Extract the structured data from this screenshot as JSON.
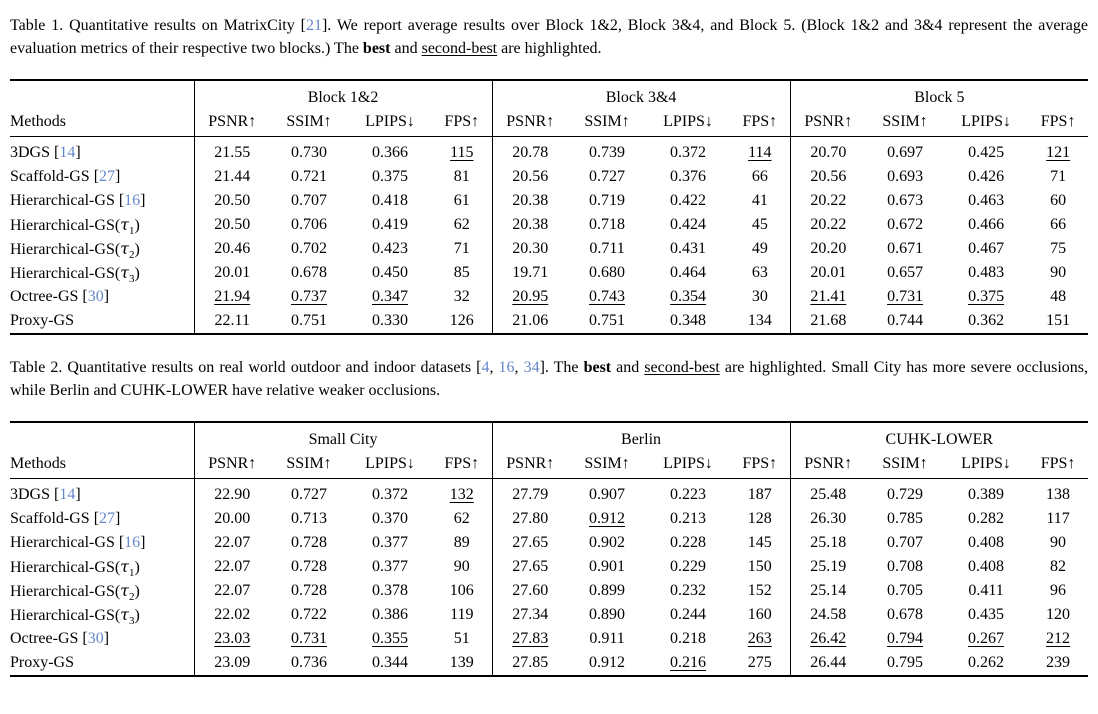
{
  "page": {
    "background": "#ffffff",
    "text_color": "#000000",
    "citation_color": "#6487c9",
    "format_codes": {
      "n": "normal",
      "b": "best-bold",
      "u": "second-best-underline"
    }
  },
  "tables": [
    {
      "id": "table-1",
      "caption": [
        {
          "text": "Table 1.  Quantitative results on MatrixCity [",
          "style": "normal"
        },
        {
          "text": "21",
          "style": "ref"
        },
        {
          "text": "].  We report average results over Block 1&2, Block 3&4, and Block 5.  (Block 1&2 and 3&4 represent the average evaluation metrics of their respective two blocks.) The ",
          "style": "normal"
        },
        {
          "text": "best",
          "style": "bold"
        },
        {
          "text": " and ",
          "style": "normal"
        },
        {
          "text": "second-best",
          "style": "underline"
        },
        {
          "text": " are highlighted.",
          "style": "normal"
        }
      ],
      "methods_label": "Methods",
      "groups": [
        "Block 1&2",
        "Block 3&4",
        "Block 5"
      ],
      "metrics": [
        "PSNR↑",
        "SSIM↑",
        "LPIPS↓",
        "FPS↑"
      ],
      "rows": [
        {
          "method": {
            "name": "3DGS",
            "ref": "14"
          },
          "cells": [
            [
              "21.55",
              "n"
            ],
            [
              "0.730",
              "n"
            ],
            [
              "0.366",
              "n"
            ],
            [
              "115",
              "u"
            ],
            [
              "20.78",
              "n"
            ],
            [
              "0.739",
              "n"
            ],
            [
              "0.372",
              "n"
            ],
            [
              "114",
              "u"
            ],
            [
              "20.70",
              "n"
            ],
            [
              "0.697",
              "n"
            ],
            [
              "0.425",
              "n"
            ],
            [
              "121",
              "u"
            ]
          ]
        },
        {
          "method": {
            "name": "Scaffold-GS",
            "ref": "27"
          },
          "cells": [
            [
              "21.44",
              "n"
            ],
            [
              "0.721",
              "n"
            ],
            [
              "0.375",
              "n"
            ],
            [
              "81",
              "n"
            ],
            [
              "20.56",
              "n"
            ],
            [
              "0.727",
              "n"
            ],
            [
              "0.376",
              "n"
            ],
            [
              "66",
              "n"
            ],
            [
              "20.56",
              "n"
            ],
            [
              "0.693",
              "n"
            ],
            [
              "0.426",
              "n"
            ],
            [
              "71",
              "n"
            ]
          ]
        },
        {
          "method": {
            "name": "Hierarchical-GS",
            "ref": "16"
          },
          "cells": [
            [
              "20.50",
              "n"
            ],
            [
              "0.707",
              "n"
            ],
            [
              "0.418",
              "n"
            ],
            [
              "61",
              "n"
            ],
            [
              "20.38",
              "n"
            ],
            [
              "0.719",
              "n"
            ],
            [
              "0.422",
              "n"
            ],
            [
              "41",
              "n"
            ],
            [
              "20.22",
              "n"
            ],
            [
              "0.673",
              "n"
            ],
            [
              "0.463",
              "n"
            ],
            [
              "60",
              "n"
            ]
          ]
        },
        {
          "method": {
            "name": "Hierarchical-GS",
            "tau": "1"
          },
          "cells": [
            [
              "20.50",
              "n"
            ],
            [
              "0.706",
              "n"
            ],
            [
              "0.419",
              "n"
            ],
            [
              "62",
              "n"
            ],
            [
              "20.38",
              "n"
            ],
            [
              "0.718",
              "n"
            ],
            [
              "0.424",
              "n"
            ],
            [
              "45",
              "n"
            ],
            [
              "20.22",
              "n"
            ],
            [
              "0.672",
              "n"
            ],
            [
              "0.466",
              "n"
            ],
            [
              "66",
              "n"
            ]
          ]
        },
        {
          "method": {
            "name": "Hierarchical-GS",
            "tau": "2"
          },
          "cells": [
            [
              "20.46",
              "n"
            ],
            [
              "0.702",
              "n"
            ],
            [
              "0.423",
              "n"
            ],
            [
              "71",
              "n"
            ],
            [
              "20.30",
              "n"
            ],
            [
              "0.711",
              "n"
            ],
            [
              "0.431",
              "n"
            ],
            [
              "49",
              "n"
            ],
            [
              "20.20",
              "n"
            ],
            [
              "0.671",
              "n"
            ],
            [
              "0.467",
              "n"
            ],
            [
              "75",
              "n"
            ]
          ]
        },
        {
          "method": {
            "name": "Hierarchical-GS",
            "tau": "3"
          },
          "cells": [
            [
              "20.01",
              "n"
            ],
            [
              "0.678",
              "n"
            ],
            [
              "0.450",
              "n"
            ],
            [
              "85",
              "n"
            ],
            [
              "19.71",
              "n"
            ],
            [
              "0.680",
              "n"
            ],
            [
              "0.464",
              "n"
            ],
            [
              "63",
              "n"
            ],
            [
              "20.01",
              "n"
            ],
            [
              "0.657",
              "n"
            ],
            [
              "0.483",
              "n"
            ],
            [
              "90",
              "n"
            ]
          ]
        },
        {
          "method": {
            "name": "Octree-GS",
            "ref": "30"
          },
          "cells": [
            [
              "21.94",
              "u"
            ],
            [
              "0.737",
              "u"
            ],
            [
              "0.347",
              "u"
            ],
            [
              "32",
              "n"
            ],
            [
              "20.95",
              "u"
            ],
            [
              "0.743",
              "u"
            ],
            [
              "0.354",
              "u"
            ],
            [
              "30",
              "n"
            ],
            [
              "21.41",
              "u"
            ],
            [
              "0.731",
              "u"
            ],
            [
              "0.375",
              "u"
            ],
            [
              "48",
              "n"
            ]
          ]
        },
        {
          "method": {
            "name": "Proxy-GS"
          },
          "cells": [
            [
              "22.11",
              "b"
            ],
            [
              "0.751",
              "b"
            ],
            [
              "0.330",
              "b"
            ],
            [
              "126",
              "b"
            ],
            [
              "21.06",
              "b"
            ],
            [
              "0.751",
              "b"
            ],
            [
              "0.348",
              "b"
            ],
            [
              "134",
              "b"
            ],
            [
              "21.68",
              "b"
            ],
            [
              "0.744",
              "b"
            ],
            [
              "0.362",
              "b"
            ],
            [
              "151",
              "b"
            ]
          ]
        }
      ]
    },
    {
      "id": "table-2",
      "caption": [
        {
          "text": "Table 2.  Quantitative results on real world outdoor and indoor datasets [",
          "style": "normal"
        },
        {
          "text": "4",
          "style": "ref"
        },
        {
          "text": ", ",
          "style": "normal"
        },
        {
          "text": "16",
          "style": "ref"
        },
        {
          "text": ", ",
          "style": "normal"
        },
        {
          "text": "34",
          "style": "ref"
        },
        {
          "text": "].  The ",
          "style": "normal"
        },
        {
          "text": "best",
          "style": "bold"
        },
        {
          "text": " and ",
          "style": "normal"
        },
        {
          "text": "second-best",
          "style": "underline"
        },
        {
          "text": " are highlighted.  Small City has more severe occlusions, while Berlin and CUHK-LOWER have relative weaker occlusions.",
          "style": "normal"
        }
      ],
      "methods_label": "Methods",
      "groups": [
        "Small City",
        "Berlin",
        "CUHK-LOWER"
      ],
      "metrics": [
        "PSNR↑",
        "SSIM↑",
        "LPIPS↓",
        "FPS↑"
      ],
      "rows": [
        {
          "method": {
            "name": "3DGS",
            "ref": "14"
          },
          "cells": [
            [
              "22.90",
              "n"
            ],
            [
              "0.727",
              "n"
            ],
            [
              "0.372",
              "n"
            ],
            [
              "132",
              "u"
            ],
            [
              "27.79",
              "n"
            ],
            [
              "0.907",
              "n"
            ],
            [
              "0.223",
              "n"
            ],
            [
              "187",
              "n"
            ],
            [
              "25.48",
              "n"
            ],
            [
              "0.729",
              "n"
            ],
            [
              "0.389",
              "n"
            ],
            [
              "138",
              "n"
            ]
          ]
        },
        {
          "method": {
            "name": "Scaffold-GS",
            "ref": "27"
          },
          "cells": [
            [
              "20.00",
              "n"
            ],
            [
              "0.713",
              "n"
            ],
            [
              "0.370",
              "n"
            ],
            [
              "62",
              "n"
            ],
            [
              "27.80",
              "n"
            ],
            [
              "0.912",
              "u"
            ],
            [
              "0.213",
              "b"
            ],
            [
              "128",
              "n"
            ],
            [
              "26.30",
              "n"
            ],
            [
              "0.785",
              "n"
            ],
            [
              "0.282",
              "n"
            ],
            [
              "117",
              "n"
            ]
          ]
        },
        {
          "method": {
            "name": "Hierarchical-GS",
            "ref": "16"
          },
          "cells": [
            [
              "22.07",
              "n"
            ],
            [
              "0.728",
              "n"
            ],
            [
              "0.377",
              "n"
            ],
            [
              "89",
              "n"
            ],
            [
              "27.65",
              "n"
            ],
            [
              "0.902",
              "n"
            ],
            [
              "0.228",
              "n"
            ],
            [
              "145",
              "n"
            ],
            [
              "25.18",
              "n"
            ],
            [
              "0.707",
              "n"
            ],
            [
              "0.408",
              "n"
            ],
            [
              "90",
              "n"
            ]
          ]
        },
        {
          "method": {
            "name": "Hierarchical-GS",
            "tau": "1"
          },
          "cells": [
            [
              "22.07",
              "n"
            ],
            [
              "0.728",
              "n"
            ],
            [
              "0.377",
              "n"
            ],
            [
              "90",
              "n"
            ],
            [
              "27.65",
              "n"
            ],
            [
              "0.901",
              "n"
            ],
            [
              "0.229",
              "n"
            ],
            [
              "150",
              "n"
            ],
            [
              "25.19",
              "n"
            ],
            [
              "0.708",
              "n"
            ],
            [
              "0.408",
              "n"
            ],
            [
              "82",
              "n"
            ]
          ]
        },
        {
          "method": {
            "name": "Hierarchical-GS",
            "tau": "2"
          },
          "cells": [
            [
              "22.07",
              "n"
            ],
            [
              "0.728",
              "n"
            ],
            [
              "0.378",
              "n"
            ],
            [
              "106",
              "n"
            ],
            [
              "27.60",
              "n"
            ],
            [
              "0.899",
              "n"
            ],
            [
              "0.232",
              "n"
            ],
            [
              "152",
              "n"
            ],
            [
              "25.14",
              "n"
            ],
            [
              "0.705",
              "n"
            ],
            [
              "0.411",
              "n"
            ],
            [
              "96",
              "n"
            ]
          ]
        },
        {
          "method": {
            "name": "Hierarchical-GS",
            "tau": "3"
          },
          "cells": [
            [
              "22.02",
              "n"
            ],
            [
              "0.722",
              "n"
            ],
            [
              "0.386",
              "n"
            ],
            [
              "119",
              "n"
            ],
            [
              "27.34",
              "n"
            ],
            [
              "0.890",
              "n"
            ],
            [
              "0.244",
              "n"
            ],
            [
              "160",
              "n"
            ],
            [
              "24.58",
              "n"
            ],
            [
              "0.678",
              "n"
            ],
            [
              "0.435",
              "n"
            ],
            [
              "120",
              "n"
            ]
          ]
        },
        {
          "method": {
            "name": "Octree-GS",
            "ref": "30"
          },
          "cells": [
            [
              "23.03",
              "u"
            ],
            [
              "0.731",
              "u"
            ],
            [
              "0.355",
              "u"
            ],
            [
              "51",
              "n"
            ],
            [
              "27.83",
              "u"
            ],
            [
              "0.911",
              "n"
            ],
            [
              "0.218",
              "n"
            ],
            [
              "263",
              "u"
            ],
            [
              "26.42",
              "u"
            ],
            [
              "0.794",
              "u"
            ],
            [
              "0.267",
              "u"
            ],
            [
              "212",
              "u"
            ]
          ]
        },
        {
          "method": {
            "name": "Proxy-GS"
          },
          "cells": [
            [
              "23.09",
              "b"
            ],
            [
              "0.736",
              "b"
            ],
            [
              "0.344",
              "b"
            ],
            [
              "139",
              "b"
            ],
            [
              "27.85",
              "b"
            ],
            [
              "0.912",
              "b"
            ],
            [
              "0.216",
              "u"
            ],
            [
              "275",
              "b"
            ],
            [
              "26.44",
              "b"
            ],
            [
              "0.795",
              "b"
            ],
            [
              "0.262",
              "b"
            ],
            [
              "239",
              "b"
            ]
          ]
        }
      ]
    }
  ]
}
